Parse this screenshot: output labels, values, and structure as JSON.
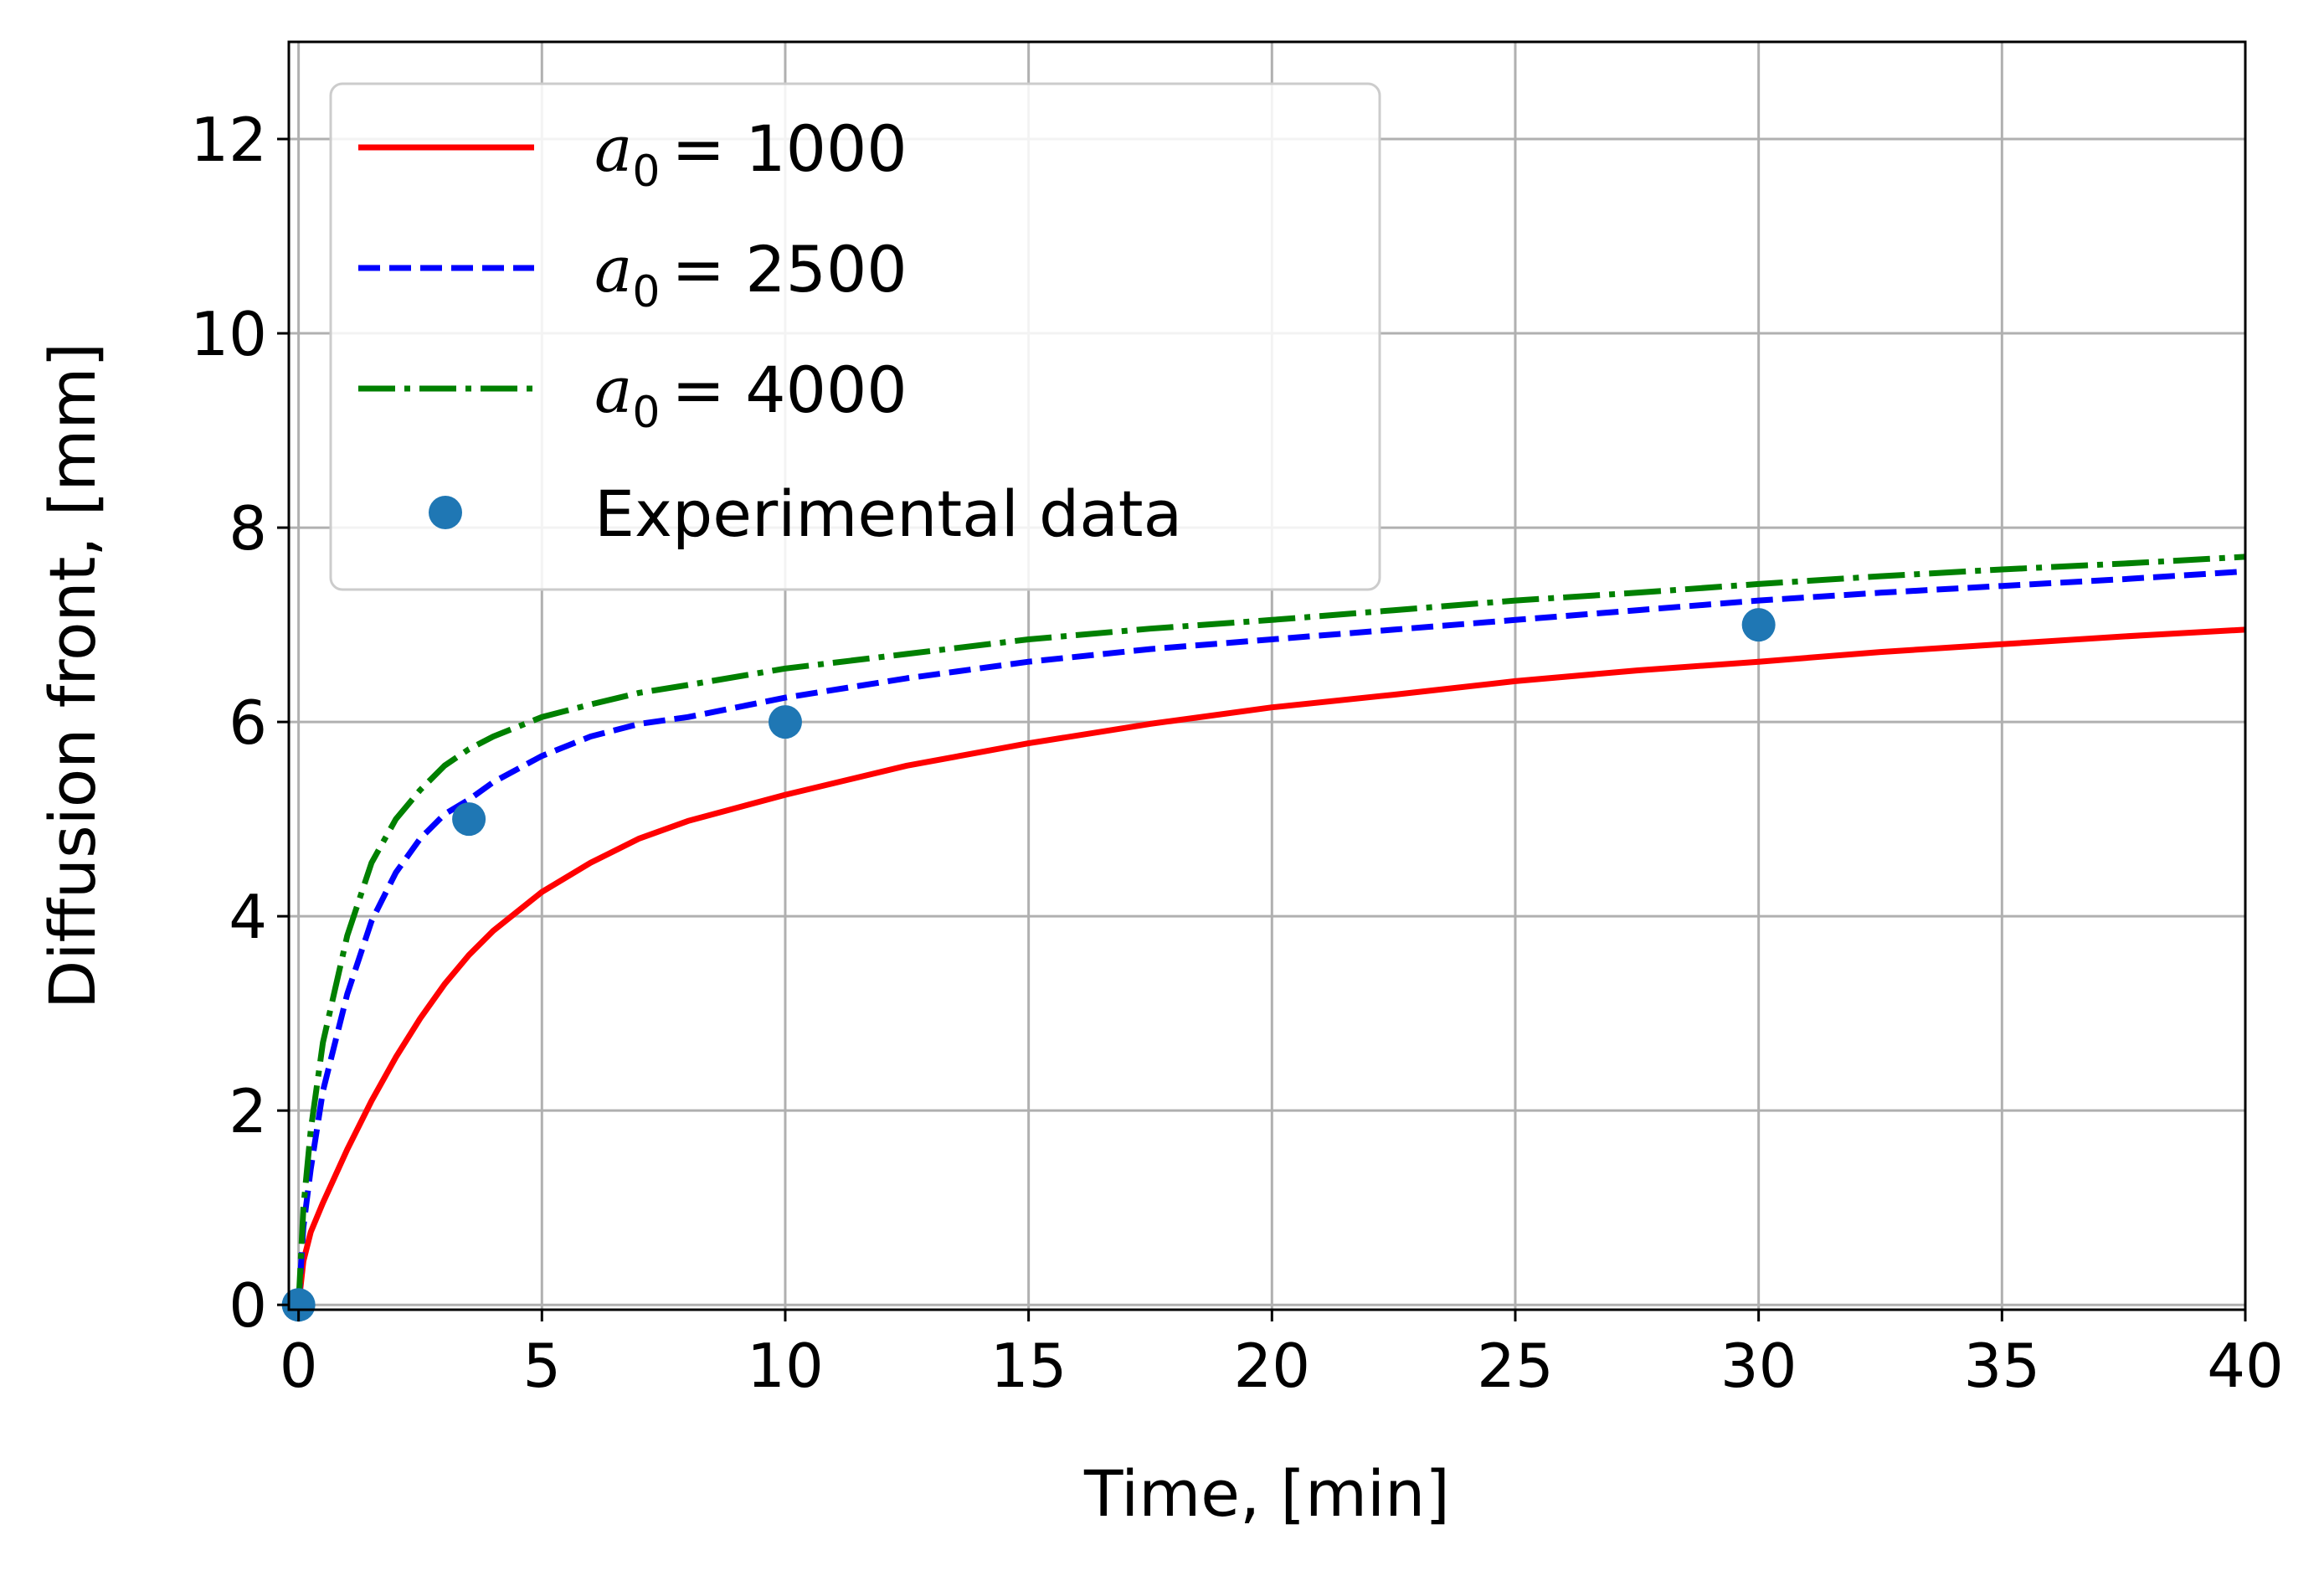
{
  "chart_data": {
    "type": "line",
    "title": "",
    "xlabel": "Time, [min]",
    "ylabel": "Diffusion front, [mm]",
    "xlim": [
      -0.2,
      40
    ],
    "ylim": [
      -0.05,
      13
    ],
    "xticks": [
      0,
      5,
      10,
      15,
      20,
      25,
      30,
      35,
      40
    ],
    "yticks": [
      0,
      2,
      4,
      6,
      8,
      10,
      12
    ],
    "grid": true,
    "legend_position": "top-left",
    "x": [
      0,
      0.1,
      0.25,
      0.5,
      1,
      1.5,
      2,
      2.5,
      3,
      3.5,
      4,
      5,
      6,
      7,
      8,
      10,
      12.5,
      15,
      17.5,
      20,
      22.5,
      25,
      27.5,
      30,
      32.5,
      35,
      37.5,
      40
    ],
    "series": [
      {
        "name": "a_0 = 1000",
        "legend_symbol": "a",
        "legend_subscript": "0",
        "legend_value": "= 1000",
        "color": "#ff0000",
        "linestyle": "solid",
        "values": [
          0,
          0.45,
          0.75,
          1.05,
          1.6,
          2.1,
          2.55,
          2.95,
          3.3,
          3.6,
          3.85,
          4.25,
          4.55,
          4.8,
          4.98,
          5.25,
          5.55,
          5.78,
          5.98,
          6.15,
          6.28,
          6.42,
          6.53,
          6.62,
          6.72,
          6.8,
          6.88,
          6.95
        ]
      },
      {
        "name": "a_0 = 2500",
        "legend_symbol": "a",
        "legend_subscript": "0",
        "legend_value": "= 2500",
        "color": "#0000ff",
        "linestyle": "dashed",
        "values": [
          0,
          0.8,
          1.4,
          2.2,
          3.2,
          3.95,
          4.45,
          4.8,
          5.05,
          5.2,
          5.38,
          5.65,
          5.85,
          5.98,
          6.05,
          6.25,
          6.45,
          6.62,
          6.75,
          6.85,
          6.95,
          7.05,
          7.15,
          7.25,
          7.33,
          7.4,
          7.47,
          7.55
        ]
      },
      {
        "name": "a_0 = 4000",
        "legend_symbol": "a",
        "legend_subscript": "0",
        "legend_value": "= 4000",
        "color": "#008000",
        "linestyle": "dashdot",
        "values": [
          0,
          1.0,
          1.8,
          2.7,
          3.8,
          4.55,
          5.0,
          5.3,
          5.55,
          5.72,
          5.85,
          6.05,
          6.18,
          6.3,
          6.38,
          6.55,
          6.7,
          6.85,
          6.96,
          7.05,
          7.15,
          7.25,
          7.33,
          7.42,
          7.5,
          7.57,
          7.63,
          7.7
        ]
      }
    ],
    "points": {
      "name": "Experimental data",
      "color": "#1f77b4",
      "x": [
        0,
        3.5,
        10,
        30
      ],
      "y": [
        0,
        5,
        6,
        7
      ]
    }
  }
}
